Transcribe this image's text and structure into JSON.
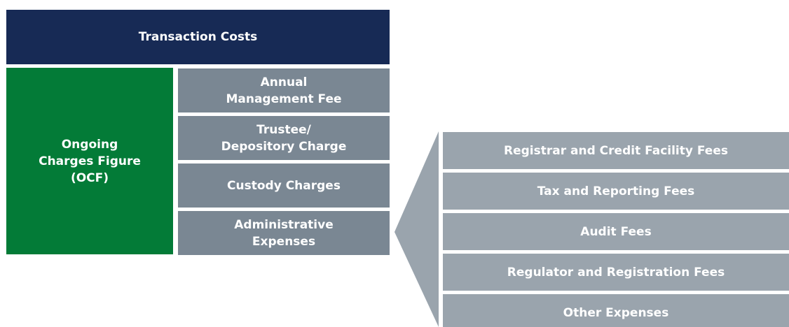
{
  "header": {
    "title": "Transaction Costs"
  },
  "ocf": {
    "label": [
      "Ongoing",
      "Charges Figure",
      "(OCF)"
    ]
  },
  "components": [
    [
      "Annual",
      "Management Fee"
    ],
    [
      "Trustee/",
      "Depository Charge"
    ],
    [
      "Custody Charges"
    ],
    [
      "Administrative",
      "Expenses"
    ]
  ],
  "admin_breakdown": [
    "Registrar and Credit Facility Fees",
    "Tax and Reporting Fees",
    "Audit Fees",
    "Regulator and Registration Fees",
    "Other Expenses"
  ]
}
